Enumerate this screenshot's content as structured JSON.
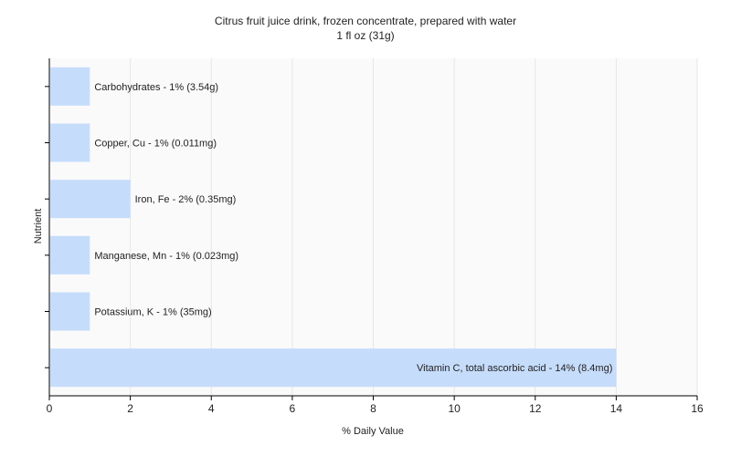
{
  "chart_data": {
    "type": "bar",
    "orientation": "horizontal",
    "title": "Citrus fruit juice drink, frozen concentrate, prepared with water",
    "subtitle": "1 fl oz (31g)",
    "xlabel": "% Daily Value",
    "ylabel": "Nutrient",
    "xlim": [
      0,
      16
    ],
    "xticks": [
      0,
      2,
      4,
      6,
      8,
      10,
      12,
      14,
      16
    ],
    "grid": true,
    "bar_color": "#c6dcfb",
    "categories": [
      "Carbohydrates",
      "Copper, Cu",
      "Iron, Fe",
      "Manganese, Mn",
      "Potassium, K",
      "Vitamin C, total ascorbic acid"
    ],
    "values": [
      1,
      1,
      2,
      1,
      1,
      14
    ],
    "labels": [
      "Carbohydrates - 1% (3.54g)",
      "Copper, Cu - 1% (0.011mg)",
      "Iron, Fe - 2% (0.35mg)",
      "Manganese, Mn - 1% (0.023mg)",
      "Potassium, K - 1% (35mg)",
      "Vitamin C, total ascorbic acid - 14% (8.4mg)"
    ]
  }
}
